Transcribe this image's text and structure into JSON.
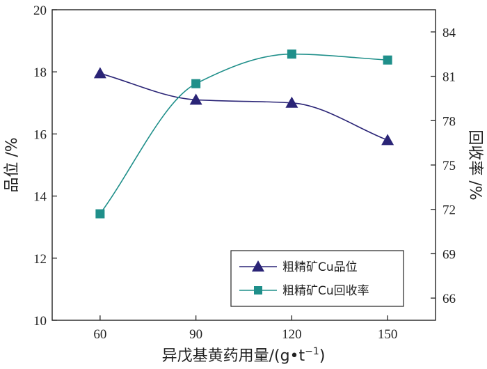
{
  "chart_data": {
    "type": "line",
    "x": [
      60,
      90,
      120,
      150
    ],
    "xlabel": "异戊基黄药用量/(g•t",
    "xlabel_sup": "−1",
    "xlabel_tail": ")",
    "xlim": [
      45,
      165
    ],
    "xticks": [
      60,
      90,
      120,
      150
    ],
    "ylabel_left": "品位 /%",
    "ylim_left": [
      10,
      20
    ],
    "yticks_left": [
      10,
      12,
      14,
      16,
      18,
      20
    ],
    "ylabel_right": "回收率 /%",
    "ylim_right": [
      64.5,
      85.5
    ],
    "yticks_right": [
      66,
      69,
      72,
      75,
      78,
      81,
      84
    ],
    "legend_position": "bottom-right",
    "series": [
      {
        "name": "粗精矿Cu品位",
        "axis": "left",
        "marker": "triangle",
        "color": "#2a2476",
        "values": [
          17.95,
          17.1,
          17.0,
          15.8
        ]
      },
      {
        "name": "粗精矿Cu回收率",
        "axis": "right",
        "marker": "square",
        "color": "#1f8f8a",
        "values": [
          71.7,
          80.5,
          82.5,
          82.1
        ]
      }
    ]
  }
}
